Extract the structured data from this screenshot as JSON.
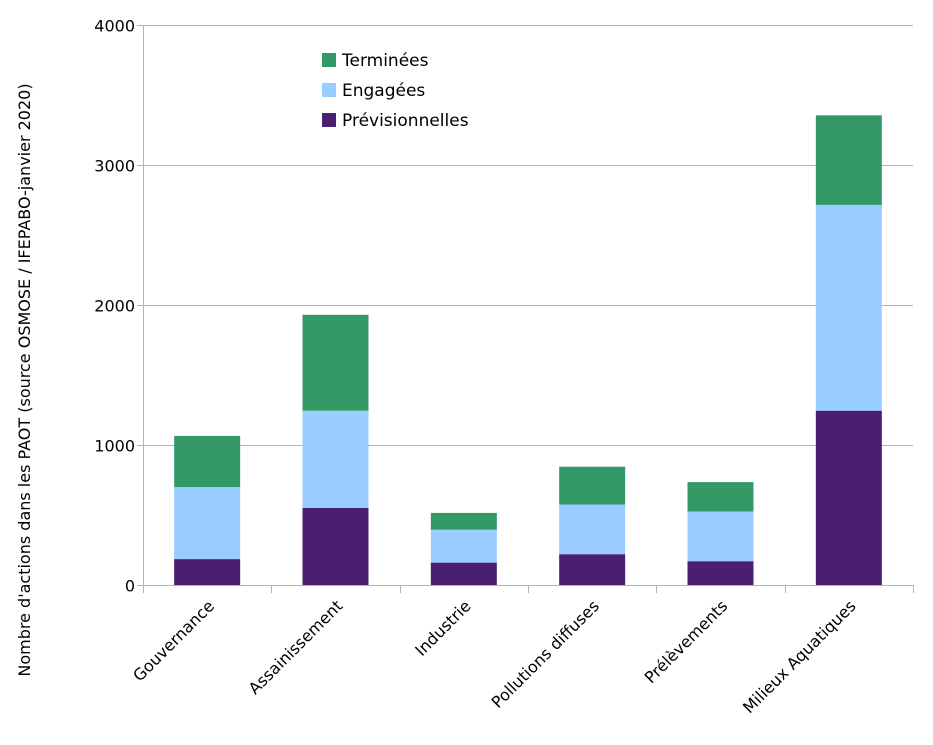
{
  "chart_data": {
    "type": "bar",
    "stacked": true,
    "categories": [
      "Gouvernance",
      "Assainissement",
      "Industrie",
      "Pollutions diffuses",
      "Prélèvements",
      "Milieux Aquatiques"
    ],
    "series": [
      {
        "name": "Prévisionnelles",
        "color": "#4b1f6f",
        "values": [
          185,
          550,
          160,
          220,
          170,
          1245
        ]
      },
      {
        "name": "Engagées",
        "color": "#99ccff",
        "values": [
          515,
          695,
          235,
          355,
          355,
          1470
        ]
      },
      {
        "name": "Terminées",
        "color": "#339966",
        "values": [
          365,
          685,
          120,
          270,
          210,
          640
        ]
      }
    ],
    "legend_order": [
      "Terminées",
      "Engagées",
      "Prévisionnelles"
    ],
    "title": "",
    "xlabel": "",
    "ylabel": "Nombre d'actions dans les PAOT (source OSMOSE / IFEPABO-janvier 2020)",
    "ylim": [
      0,
      4000
    ],
    "yticks": [
      0,
      1000,
      2000,
      3000,
      4000
    ],
    "grid": true,
    "legend_position": "top-left"
  }
}
